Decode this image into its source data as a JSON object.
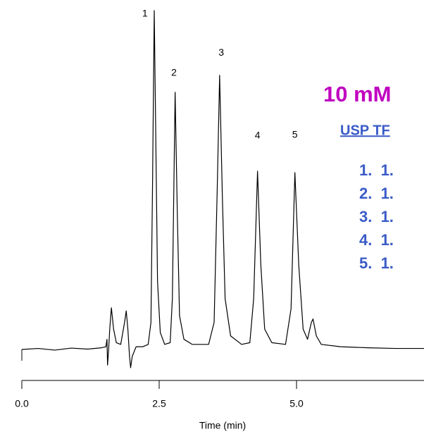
{
  "chart_data": {
    "type": "line",
    "x_label": "Time (min)",
    "xlim": [
      0,
      7.32
    ],
    "ylim": [
      0,
      100
    ],
    "xticks": [
      {
        "value": 0,
        "label": "0.0"
      },
      2.5,
      {
        "value": 5,
        "label": "5.0"
      }
    ],
    "x": [
      0.0,
      0.3,
      0.6,
      0.9,
      1.2,
      1.45,
      1.53,
      1.55,
      1.56,
      1.58,
      1.6,
      1.63,
      1.67,
      1.72,
      1.8,
      1.87,
      1.9,
      1.93,
      1.96,
      1.98,
      2.01,
      2.08,
      2.2,
      2.3,
      2.35,
      2.38,
      2.41,
      2.44,
      2.47,
      2.52,
      2.6,
      2.7,
      2.74,
      2.79,
      2.83,
      2.87,
      2.95,
      3.1,
      3.4,
      3.5,
      3.56,
      3.6,
      3.65,
      3.7,
      3.8,
      4.0,
      4.15,
      4.22,
      4.29,
      4.35,
      4.42,
      4.55,
      4.8,
      4.9,
      4.97,
      5.04,
      5.12,
      5.2,
      5.27,
      5.3,
      5.36,
      5.45,
      5.8,
      6.3,
      6.8,
      7.32
    ],
    "series": [
      {
        "color": "#000000",
        "values": [
          0,
          0.3,
          -0.2,
          0.4,
          0.1,
          0.5,
          0.8,
          3,
          -4.6,
          0,
          6,
          12.3,
          6,
          2,
          1.5,
          8,
          11.4,
          6,
          -2,
          -5.4,
          -2,
          0.8,
          0.8,
          1.5,
          8,
          50,
          100,
          60,
          20,
          5,
          1.5,
          2,
          15,
          75.9,
          40,
          10,
          3,
          1.5,
          1.5,
          8,
          50,
          80.9,
          45,
          15,
          4,
          1.5,
          2,
          15,
          52.6,
          25,
          6,
          2,
          1.5,
          12,
          52.2,
          25,
          6,
          3,
          8,
          9,
          4,
          1.5,
          0.8,
          0.5,
          0.3,
          0.3
        ]
      }
    ],
    "peak_labels": [
      {
        "text": "1",
        "x": 2.24,
        "y": 99
      },
      {
        "text": "2",
        "x": 2.77,
        "y": 81.5
      },
      {
        "text": "3",
        "x": 3.63,
        "y": 87.5
      },
      {
        "text": "4",
        "x": 4.29,
        "y": 63
      },
      {
        "text": "5",
        "x": 4.97,
        "y": 63.2
      }
    ],
    "inset": {
      "heading": "10 mM",
      "subheading": "USP TF",
      "items": [
        "1.  1.",
        "2.  1.",
        "3.  1.",
        "4.  1.",
        "5.  1."
      ]
    }
  }
}
